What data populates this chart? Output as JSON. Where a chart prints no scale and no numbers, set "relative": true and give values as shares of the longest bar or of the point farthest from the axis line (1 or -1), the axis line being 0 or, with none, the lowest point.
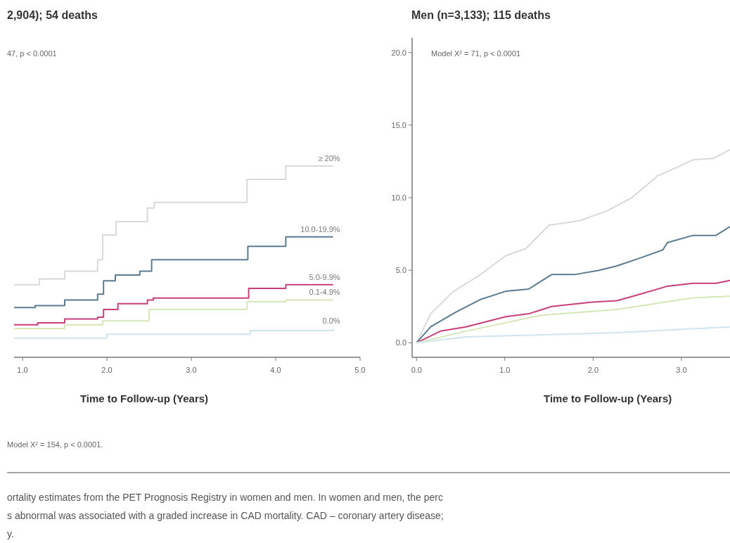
{
  "chart_data": [
    {
      "type": "step",
      "title": "2,904); 54 deaths",
      "xlabel": "Time to Follow-up (Years)",
      "xlim": [
        0.9,
        5.0
      ],
      "xticks": [
        {
          "value": 1,
          "label": "1.0"
        },
        {
          "value": 2,
          "label": "2.0"
        },
        {
          "value": 3,
          "label": "3.0"
        },
        {
          "value": 4,
          "label": "4.0"
        },
        {
          "value": 5,
          "label": "5.0"
        }
      ],
      "relative": true,
      "tick_labels": "x",
      "annotations": [
        "47, p < 0.0001",
        "Model X² = 154, p < 0.0001.",
        "ortality estimates from the PET Prognosis Registry in women and men. In women and men, the perc",
        "s abnormal was associated with a graded increase in CAD mortality. CAD – coronary artery disease;",
        "y."
      ],
      "series": [
        {
          "name": "≥ 20%",
          "color": "#d9d9d9",
          "x": [
            0.9,
            1.2,
            1.5,
            1.89,
            1.95,
            2.11,
            2.48,
            2.56,
            3.66,
            4.12,
            4.68
          ],
          "values": [
            0.38,
            0.41,
            0.45,
            0.51,
            0.64,
            0.71,
            0.78,
            0.81,
            0.93,
            1,
            1
          ]
        },
        {
          "name": "10.0-19.9%",
          "color": "#5b7b91",
          "x": [
            0.9,
            1.15,
            1.5,
            1.89,
            1.96,
            2.1,
            2.39,
            2.53,
            3.67,
            4.12,
            4.68
          ],
          "values": [
            0.26,
            0.27,
            0.3,
            0.33,
            0.4,
            0.43,
            0.45,
            0.51,
            0.58,
            0.63,
            0.63
          ]
        },
        {
          "name": "5.0-9.9%",
          "color": "#c8407a",
          "x": [
            0.9,
            1.18,
            1.5,
            1.89,
            1.96,
            2.13,
            2.48,
            2.55,
            3.68,
            4.12,
            4.68
          ],
          "values": [
            0.17,
            0.18,
            0.2,
            0.21,
            0.25,
            0.28,
            0.3,
            0.31,
            0.36,
            0.38,
            0.38
          ]
        },
        {
          "name": "0.1-4.9%",
          "color": "#d5e8b5",
          "x": [
            0.9,
            1.5,
            1.95,
            2.5,
            3.66,
            4.12,
            4.68
          ],
          "values": [
            0.15,
            0.17,
            0.19,
            0.25,
            0.29,
            0.3,
            0.3
          ]
        },
        {
          "name": "0.0%",
          "color": "#cfe4ee",
          "x": [
            0.9,
            2.0,
            3.7,
            4.68
          ],
          "values": [
            0.1,
            0.12,
            0.14,
            0.15
          ]
        }
      ]
    },
    {
      "type": "line",
      "title": "Men (n=3,133); 115 deaths",
      "xlabel": "Time to Follow-up (Years)",
      "xlim": [
        -0.05,
        3.55
      ],
      "xticks": [
        {
          "value": 0,
          "label": "0.0"
        },
        {
          "value": 1,
          "label": "1.0"
        },
        {
          "value": 2,
          "label": "2.0"
        },
        {
          "value": 3,
          "label": "3.0"
        }
      ],
      "ylim": [
        -1,
        21
      ],
      "yticks": [
        {
          "value": 0,
          "label": "0.0"
        },
        {
          "value": 5,
          "label": "5.0"
        },
        {
          "value": 10,
          "label": "10.0"
        },
        {
          "value": 15,
          "label": "15.0"
        },
        {
          "value": 20,
          "label": "20.0"
        }
      ],
      "annotations": [
        "Model X² = 71, p < 0.0001"
      ],
      "series": [
        {
          "color": "#d9d9d9",
          "x": [
            0,
            0.16,
            0.41,
            0.7,
            1.01,
            1.24,
            1.5,
            1.84,
            2.16,
            2.44,
            2.73,
            2.99,
            3.13,
            3.36,
            3.55
          ],
          "values": [
            0,
            2.0,
            3.5,
            4.6,
            6.0,
            6.5,
            8.1,
            8.4,
            9.1,
            10.0,
            11.5,
            12.2,
            12.6,
            12.7,
            13.3
          ]
        },
        {
          "color": "#5b7b91",
          "x": [
            0,
            0.16,
            0.44,
            0.73,
            1.01,
            1.27,
            1.53,
            1.79,
            2.07,
            2.27,
            2.56,
            2.79,
            2.84,
            3.13,
            3.39,
            3.55
          ],
          "values": [
            0,
            1.1,
            2.1,
            3.0,
            3.55,
            3.7,
            4.7,
            4.7,
            5.0,
            5.3,
            5.9,
            6.4,
            6.9,
            7.4,
            7.4,
            8.0
          ]
        },
        {
          "color": "#c8407a",
          "x": [
            0,
            0.27,
            0.56,
            1.01,
            1.27,
            1.53,
            1.99,
            2.27,
            2.56,
            2.84,
            3.13,
            3.39,
            3.55
          ],
          "values": [
            0,
            0.8,
            1.1,
            1.8,
            2.0,
            2.5,
            2.8,
            2.9,
            3.4,
            3.9,
            4.1,
            4.1,
            4.3
          ]
        },
        {
          "color": "#d5e8b5",
          "x": [
            0,
            0.56,
            1.41,
            2.27,
            3.13,
            3.55
          ],
          "values": [
            0,
            0.8,
            1.9,
            2.3,
            3.1,
            3.2
          ]
        },
        {
          "color": "#cfe4ee",
          "x": [
            0,
            0.56,
            2.27,
            3.55
          ],
          "values": [
            0,
            0.4,
            0.7,
            1.1
          ]
        }
      ]
    }
  ]
}
